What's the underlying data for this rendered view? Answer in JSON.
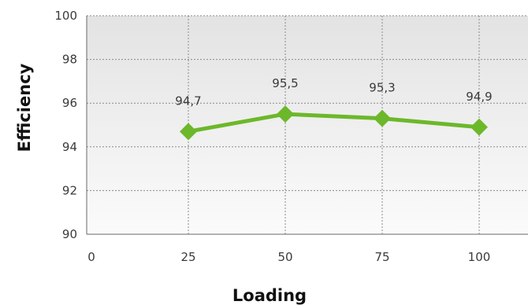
{
  "chart_data": {
    "type": "line",
    "title": "",
    "xlabel": "Loading",
    "ylabel": "Efficiency",
    "x_ticks": [
      "0",
      "25",
      "50",
      "75",
      "100"
    ],
    "y_ticks": [
      "90",
      "92",
      "94",
      "96",
      "98",
      "100"
    ],
    "xlim": [
      0,
      100
    ],
    "ylim": [
      90,
      100
    ],
    "grid": true,
    "series": [
      {
        "x": [
          25,
          50,
          75,
          100
        ],
        "y": [
          94.7,
          95.5,
          95.3,
          94.9
        ],
        "labels": [
          "94,7",
          "95,5",
          "95,3",
          "94,9"
        ],
        "color": "#6cb82a",
        "marker": "diamond"
      }
    ]
  }
}
